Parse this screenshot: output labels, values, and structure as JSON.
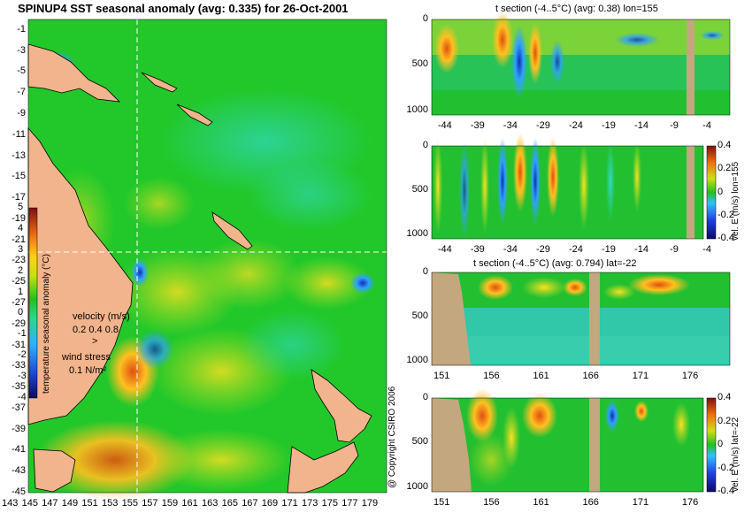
{
  "page": {
    "copyright": "@ Copyright CSIRO 2006",
    "colors": {
      "land": "#f2b48c",
      "section_land": "#c3a77f",
      "grid_line": "#ffffff"
    }
  },
  "chart_data": [
    {
      "id": "map",
      "type": "heatmap",
      "title": "SPINUP4 SST seasonal anomaly (avg: 0.335) for 26-Oct-2001",
      "lon_ticks": [
        "143",
        "145",
        "147",
        "149",
        "151",
        "153",
        "155",
        "157",
        "159",
        "161",
        "163",
        "165",
        "167",
        "169",
        "171",
        "173",
        "175",
        "177",
        "179"
      ],
      "lat_ticks": [
        "-1",
        "-3",
        "-5",
        "-7",
        "-9",
        "-11",
        "-13",
        "-15",
        "-17",
        "-19",
        "-21",
        "-23",
        "-25",
        "-27",
        "-29",
        "-31",
        "-33",
        "-35",
        "-37",
        "-39",
        "-41",
        "-43",
        "-45"
      ],
      "xlim": [
        143,
        180
      ],
      "ylim": [
        -45,
        0
      ],
      "crosshair": {
        "lon": 155,
        "lat": -22
      },
      "colorbar": {
        "label": "temperature seasonal anomaly (°C)",
        "ticks": [
          "5",
          "4",
          "3",
          "2",
          "1",
          "0",
          "-1",
          "-2",
          "-3",
          "-4"
        ],
        "range": [
          -4,
          5
        ]
      },
      "legend": {
        "velocity_label": "velocity (m/s)",
        "velocity_scale": "0.2 0.4 0.8",
        "wind_label": "wind stress",
        "wind_scale": "0.1 N/m²"
      }
    },
    {
      "id": "t_section_lon",
      "type": "heatmap",
      "title": "t section (-4..5°C) (avg: 0.38) lon=155",
      "x_ticks": [
        "-44",
        "-39",
        "-34",
        "-29",
        "-24",
        "-19",
        "-14",
        "-9",
        "-4"
      ],
      "x_values": [
        -44,
        -39,
        -34,
        -29,
        -24,
        -19,
        -14,
        -9,
        -4
      ],
      "xlim": [
        -45,
        0
      ],
      "y_ticks": [
        "0",
        "500",
        "1000"
      ],
      "ylim": [
        1050,
        0
      ]
    },
    {
      "id": "vel_section_lon",
      "type": "heatmap",
      "x_ticks": [
        "-44",
        "-39",
        "-34",
        "-29",
        "-24",
        "-19",
        "-14",
        "-9",
        "-4"
      ],
      "x_values": [
        -44,
        -39,
        -34,
        -29,
        -24,
        -19,
        -14,
        -9,
        -4
      ],
      "xlim": [
        -45,
        0
      ],
      "y_ticks": [
        "0",
        "500",
        "1000"
      ],
      "ylim": [
        1050,
        0
      ],
      "colorbar": {
        "label": "vel. E (m/s) lon=155",
        "ticks": [
          "0.4",
          "0.2",
          "0",
          "-0.2",
          "-0.4"
        ],
        "range": [
          -0.4,
          0.4
        ]
      }
    },
    {
      "id": "t_section_lat",
      "type": "heatmap",
      "title": "t section (-4..5°C) (avg: 0.794) lat=-22",
      "x_ticks": [
        "151",
        "156",
        "161",
        "166",
        "171",
        "176"
      ],
      "x_values": [
        151,
        156,
        161,
        166,
        171,
        176
      ],
      "xlim": [
        150,
        180
      ],
      "y_ticks": [
        "0",
        "500",
        "1000"
      ],
      "ylim": [
        1050,
        0
      ]
    },
    {
      "id": "vel_section_lat",
      "type": "heatmap",
      "x_ticks": [
        "151",
        "156",
        "161",
        "166",
        "171",
        "176"
      ],
      "x_values": [
        151,
        156,
        161,
        166,
        171,
        176
      ],
      "xlim": [
        150,
        180
      ],
      "y_ticks": [
        "0",
        "500",
        "1000"
      ],
      "ylim": [
        1050,
        0
      ],
      "colorbar": {
        "label": "vel. E (m/s) lat=-22",
        "ticks": [
          "0.4",
          "0.2",
          "0",
          "-0.2",
          "-0.4"
        ],
        "range": [
          -0.4,
          0.4
        ]
      }
    }
  ]
}
